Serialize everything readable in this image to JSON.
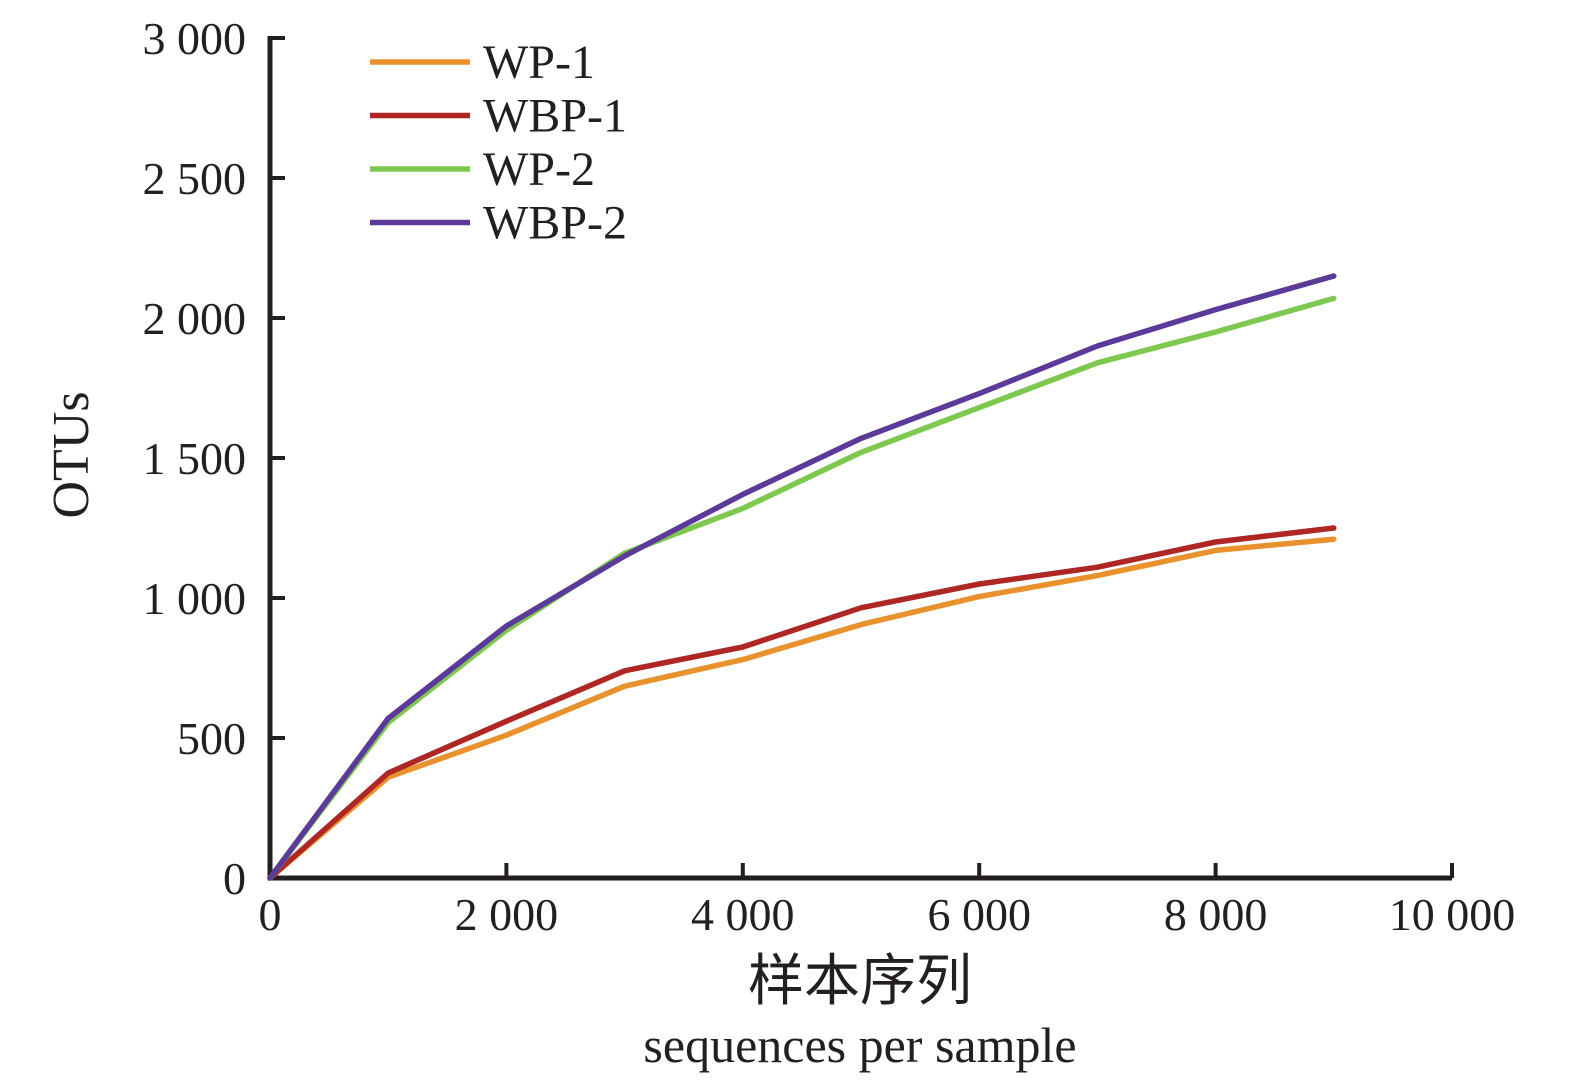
{
  "chart_data": {
    "type": "line",
    "title": "",
    "ylabel": "OTUs",
    "xlabel_zh": "样本序列",
    "xlabel_en": "sequences per sample",
    "xlim": [
      0,
      10000
    ],
    "ylim": [
      0,
      3000
    ],
    "grid": false,
    "legend_position": "top-left-inside",
    "x_ticks": [
      {
        "value": 0,
        "label": "0"
      },
      {
        "value": 2000,
        "label": "2 000"
      },
      {
        "value": 4000,
        "label": "4 000"
      },
      {
        "value": 6000,
        "label": "6 000"
      },
      {
        "value": 8000,
        "label": "8 000"
      },
      {
        "value": 10000,
        "label": "10 000"
      }
    ],
    "y_ticks": [
      {
        "value": 0,
        "label": "0"
      },
      {
        "value": 500,
        "label": "500"
      },
      {
        "value": 1000,
        "label": "1 000"
      },
      {
        "value": 1500,
        "label": "1 500"
      },
      {
        "value": 2000,
        "label": "2 000"
      },
      {
        "value": 2500,
        "label": "2 500"
      },
      {
        "value": 3000,
        "label": "3 000"
      }
    ],
    "x": [
      0,
      1000,
      2000,
      3000,
      4000,
      5000,
      6000,
      7000,
      8000,
      9000
    ],
    "series": [
      {
        "name": "WP-1",
        "color": "#E8912D",
        "values": [
          0,
          360,
          510,
          685,
          780,
          905,
          1005,
          1080,
          1170,
          1210
        ]
      },
      {
        "name": "WBP-1",
        "color": "#AF2725",
        "values": [
          0,
          375,
          560,
          740,
          825,
          965,
          1050,
          1110,
          1200,
          1250
        ]
      },
      {
        "name": "WP-2",
        "color": "#7EC850",
        "values": [
          0,
          555,
          885,
          1160,
          1320,
          1520,
          1680,
          1840,
          1950,
          2070
        ]
      },
      {
        "name": "WBP-2",
        "color": "#5C3A99",
        "values": [
          0,
          570,
          900,
          1150,
          1370,
          1570,
          1730,
          1900,
          2030,
          2150
        ]
      }
    ]
  },
  "colors": {
    "axis": "#231f20",
    "background": "#ffffff"
  }
}
